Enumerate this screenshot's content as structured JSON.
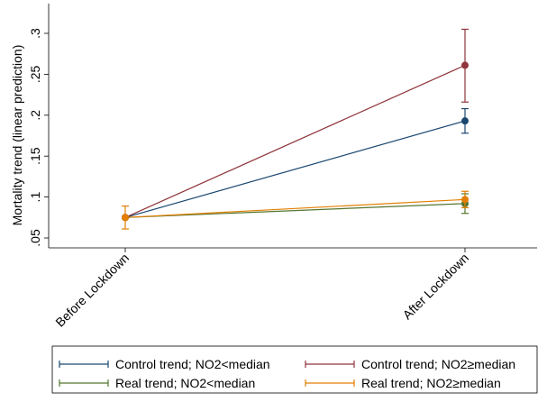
{
  "chart_data": {
    "type": "line",
    "title": "",
    "xlabel": "",
    "ylabel": "Mortality trend (linear prediction)",
    "categories": [
      "Before Lockdown",
      "After Lockdown"
    ],
    "ylim": [
      0.05,
      0.3
    ],
    "yticks": [
      0.05,
      0.1,
      0.15,
      0.2,
      0.25,
      0.3
    ],
    "ytick_labels": [
      ".05",
      ".1",
      ".15",
      ".2",
      ".25",
      ".3"
    ],
    "grid": false,
    "legend_position": "bottom",
    "series": [
      {
        "name": "Control trend; NO2<median",
        "color": "#1a476f",
        "values": [
          0.075,
          0.193
        ],
        "ci_low": [
          0.075,
          0.178
        ],
        "ci_high": [
          0.075,
          0.208
        ]
      },
      {
        "name": "Control trend; NO2≥median",
        "color": "#90353b",
        "values": [
          0.075,
          0.261
        ],
        "ci_low": [
          0.075,
          0.216
        ],
        "ci_high": [
          0.075,
          0.305
        ]
      },
      {
        "name": "Real trend; NO2<median",
        "color": "#55752f",
        "values": [
          0.075,
          0.092
        ],
        "ci_low": [
          0.075,
          0.08
        ],
        "ci_high": [
          0.075,
          0.104
        ]
      },
      {
        "name": "Real trend; NO2≥median",
        "color": "#e37e00",
        "values": [
          0.075,
          0.097
        ],
        "ci_low": [
          0.061,
          0.087
        ],
        "ci_high": [
          0.089,
          0.107
        ]
      }
    ]
  }
}
